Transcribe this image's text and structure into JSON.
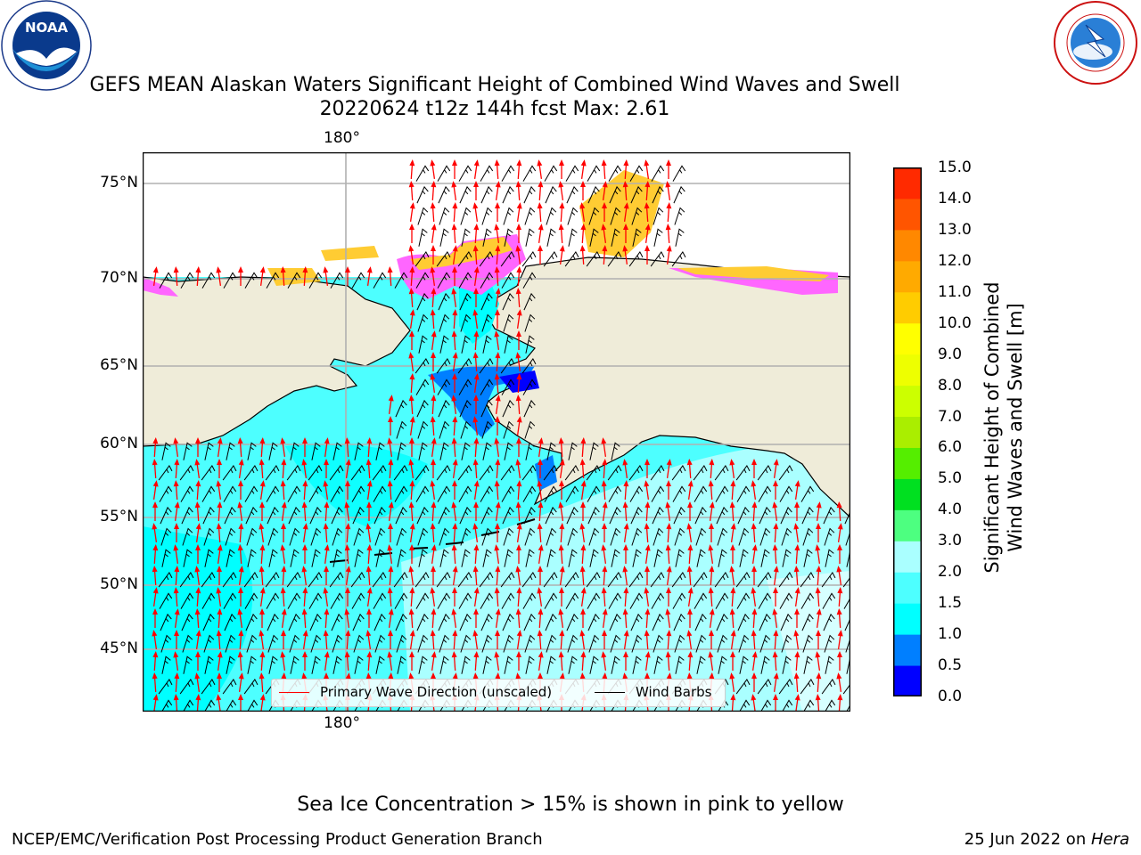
{
  "title_line1": "GEFS MEAN Alaskan Waters Significant Height of Combined Wind Waves and Swell",
  "title_line2": "20220624 t12z 144h fcst   Max: 2.61",
  "logos": {
    "left": {
      "name": "NOAA",
      "ring_text": "NATIONAL OCEANIC AND ATMOSPHERIC ADMINISTRATION",
      "bottom_text": "U.S. DEPARTMENT OF COMMERCE",
      "center_text": "NOAA"
    },
    "right": {
      "name": "National Weather Service",
      "ring_text": "NATIONAL WEATHER SERVICE"
    }
  },
  "map": {
    "lat_labels": [
      "75°N",
      "70°N",
      "65°N",
      "60°N",
      "55°N",
      "50°N",
      "45°N"
    ],
    "lon_label_top": "180°",
    "lon_label_bottom": "180°",
    "colors": {
      "land": "#efecd9",
      "ocean_low": "#00ffff",
      "ocean_mid": "#4dffff",
      "ocean_high": "#aaffff",
      "blue_dark": "#0000ff",
      "blue_mid": "#007fff",
      "ice_pink": "#ff66ff",
      "ice_yellow": "#ffcc33",
      "wave_arrow": "#ff0000",
      "wind_barb": "#000000",
      "grid": "#b0b0b0"
    }
  },
  "legend": {
    "wave_label": "Primary Wave Direction (unscaled)",
    "barb_label": "Wind Barbs",
    "wave_color": "#ff0000",
    "barb_color": "#000000"
  },
  "colorbar": {
    "label_line1": "Significant Height of Combined",
    "label_line2": "Wind Waves and Swell [m]",
    "ticks": [
      "0.0",
      "0.5",
      "1.0",
      "1.5",
      "2.0",
      "3.0",
      "4.0",
      "5.0",
      "6.0",
      "7.0",
      "8.0",
      "9.0",
      "10.0",
      "11.0",
      "12.0",
      "13.0",
      "14.0",
      "15.0"
    ],
    "colors": [
      "#0000ff",
      "#007fff",
      "#00ffff",
      "#4dffff",
      "#aaffff",
      "#4dff80",
      "#00e020",
      "#55ee00",
      "#aaee00",
      "#ccff00",
      "#eeff00",
      "#ffff00",
      "#ffcc00",
      "#ffaa00",
      "#ff8800",
      "#ff5500",
      "#ff2a00",
      "#ff0000"
    ]
  },
  "ice_note": "Sea Ice Concentration > 15% is shown in pink to yellow",
  "footer": {
    "left": "NCEP/EMC/Verification Post Processing Product Generation Branch",
    "date": "25 Jun 2022 on ",
    "machine": "Hera"
  }
}
